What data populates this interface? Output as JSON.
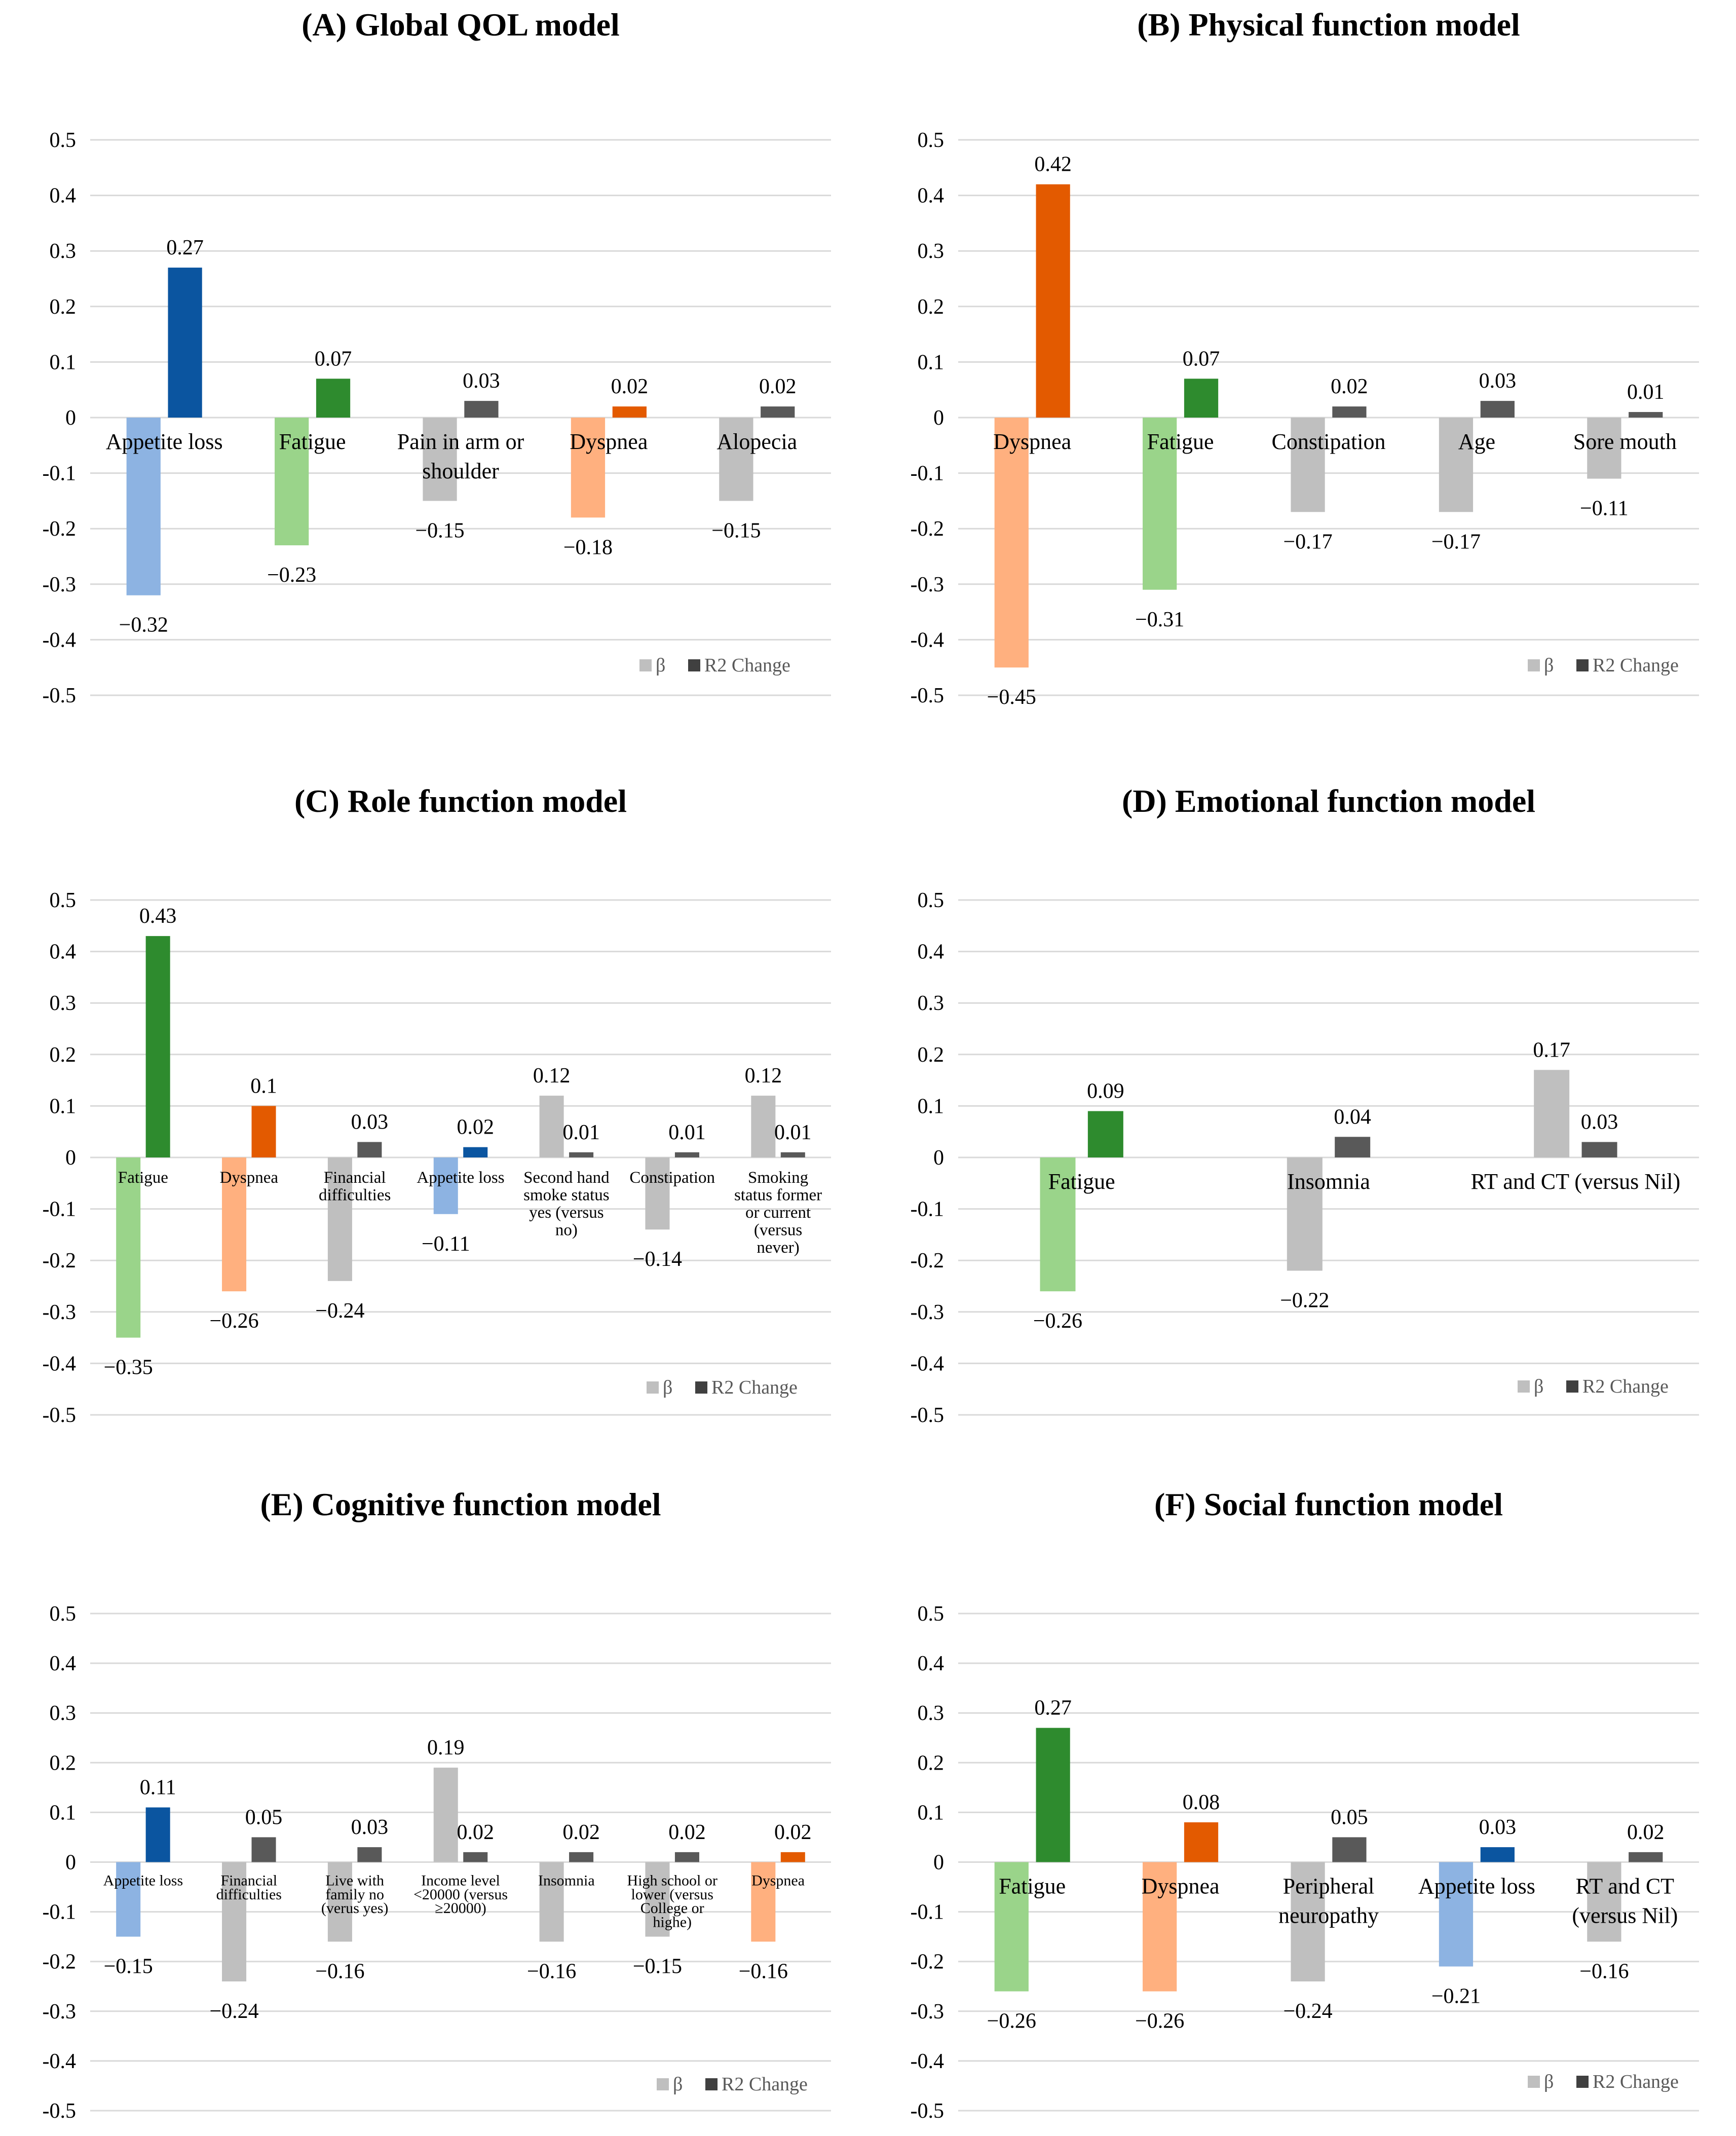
{
  "chart_data": [
    {
      "type": "bar",
      "title": "(A) Global QOL model",
      "categories": [
        "Appetite loss",
        "Fatigue",
        "Pain in arm or shoulder",
        "Dyspnea",
        "Alopecia"
      ],
      "series": [
        {
          "name": "β",
          "values": [
            -0.32,
            -0.23,
            -0.15,
            -0.18,
            -0.15
          ],
          "labels": [
            "−0.32",
            "−0.23",
            "−0.15",
            "−0.18",
            "−0.15"
          ]
        },
        {
          "name": "R2 Change",
          "values": [
            0.27,
            0.07,
            0.03,
            0.02,
            0.02
          ],
          "labels": [
            "0.27",
            "0.07",
            "0.03",
            "0.02",
            "0.02"
          ]
        }
      ],
      "beta_colors": [
        "#8DB3E2",
        "#9AD48A",
        "#BFBFBF",
        "#FFB07F",
        "#BFBFBF"
      ],
      "r2_colors": [
        "#0B55A0",
        "#2E8B2E",
        "#595959",
        "#E35A00",
        "#595959"
      ],
      "ylim": [
        -0.5,
        0.5
      ],
      "yticks": [
        "0.5",
        "0.4",
        "0.3",
        "0.2",
        "0.1",
        "0",
        "-0.1",
        "-0.2",
        "-0.3",
        "-0.4",
        "-0.5"
      ],
      "legend": "bottom-right",
      "xlabel": "",
      "ylabel": ""
    },
    {
      "type": "bar",
      "title": "(B) Physical function model",
      "categories": [
        "Dyspnea",
        "Fatigue",
        "Constipation",
        "Age",
        "Sore mouth"
      ],
      "series": [
        {
          "name": "β",
          "values": [
            -0.45,
            -0.31,
            -0.17,
            -0.17,
            -0.11
          ],
          "labels": [
            "−0.45",
            "−0.31",
            "−0.17",
            "−0.17",
            "−0.11"
          ]
        },
        {
          "name": "R2 Change",
          "values": [
            0.42,
            0.07,
            0.02,
            0.03,
            0.01
          ],
          "labels": [
            "0.42",
            "0.07",
            "0.02",
            "0.03",
            "0.01"
          ]
        }
      ],
      "beta_colors": [
        "#FFB07F",
        "#9AD48A",
        "#BFBFBF",
        "#BFBFBF",
        "#BFBFBF"
      ],
      "r2_colors": [
        "#E35A00",
        "#2E8B2E",
        "#595959",
        "#595959",
        "#595959"
      ],
      "ylim": [
        -0.5,
        0.5
      ],
      "yticks": [
        "0.5",
        "0.4",
        "0.3",
        "0.2",
        "0.1",
        "0",
        "-0.1",
        "-0.2",
        "-0.3",
        "-0.4",
        "-0.5"
      ],
      "legend": "bottom-right",
      "xlabel": "",
      "ylabel": ""
    },
    {
      "type": "bar",
      "title": "(C) Role function model",
      "categories": [
        "Fatigue",
        "Dyspnea",
        "Financial difficulties",
        "Appetite loss",
        "Second hand smoke status yes (versus no)",
        "Constipation",
        "Smoking status former or current (versus never)"
      ],
      "series": [
        {
          "name": "β",
          "values": [
            -0.35,
            -0.26,
            -0.24,
            -0.11,
            0.12,
            -0.14,
            0.12
          ],
          "labels": [
            "−0.35",
            "−0.26",
            "−0.24",
            "−0.11",
            "0.12",
            "−0.14",
            "0.12"
          ]
        },
        {
          "name": "R2 Change",
          "values": [
            0.43,
            0.1,
            0.03,
            0.02,
            0.01,
            0.01,
            0.01
          ],
          "labels": [
            "0.43",
            "0.1",
            "0.03",
            "0.02",
            "0.01",
            "0.01",
            "0.01"
          ]
        }
      ],
      "beta_colors": [
        "#9AD48A",
        "#FFB07F",
        "#BFBFBF",
        "#8DB3E2",
        "#BFBFBF",
        "#BFBFBF",
        "#BFBFBF"
      ],
      "r2_colors": [
        "#2E8B2E",
        "#E35A00",
        "#595959",
        "#0B55A0",
        "#595959",
        "#595959",
        "#595959"
      ],
      "ylim": [
        -0.5,
        0.5
      ],
      "yticks": [
        "0.5",
        "0.4",
        "0.3",
        "0.2",
        "0.1",
        "0",
        "-0.1",
        "-0.2",
        "-0.3",
        "-0.4",
        "-0.5"
      ],
      "legend": "bottom-right",
      "xlabel": "",
      "ylabel": ""
    },
    {
      "type": "bar",
      "title": "(D) Emotional function model",
      "categories": [
        "Fatigue",
        "Insomnia",
        "RT and CT (versus Nil)"
      ],
      "series": [
        {
          "name": "β",
          "values": [
            -0.26,
            -0.22,
            0.17
          ],
          "labels": [
            "−0.26",
            "−0.22",
            "0.17"
          ]
        },
        {
          "name": "R2 Change",
          "values": [
            0.09,
            0.04,
            0.03
          ],
          "labels": [
            "0.09",
            "0.04",
            "0.03"
          ]
        }
      ],
      "beta_colors": [
        "#9AD48A",
        "#BFBFBF",
        "#BFBFBF"
      ],
      "r2_colors": [
        "#2E8B2E",
        "#595959",
        "#595959"
      ],
      "ylim": [
        -0.5,
        0.5
      ],
      "yticks": [
        "0.5",
        "0.4",
        "0.3",
        "0.2",
        "0.1",
        "0",
        "-0.1",
        "-0.2",
        "-0.3",
        "-0.4",
        "-0.5"
      ],
      "legend": "bottom-right",
      "xlabel": "",
      "ylabel": ""
    },
    {
      "type": "bar",
      "title": "(E) Cognitive function model",
      "categories": [
        "Appetite loss",
        "Financial difficulties",
        "Live with family no (verus yes)",
        "Income level <20000 (versus ≥20000)",
        "Insomnia",
        "High school or lower (versus College or highe)",
        "Dyspnea"
      ],
      "series": [
        {
          "name": "β",
          "values": [
            -0.15,
            -0.24,
            -0.16,
            0.19,
            -0.16,
            -0.15,
            -0.16
          ],
          "labels": [
            "−0.15",
            "−0.24",
            "−0.16",
            "0.19",
            "−0.16",
            "−0.15",
            "−0.16"
          ]
        },
        {
          "name": "R2 Change",
          "values": [
            0.11,
            0.05,
            0.03,
            0.02,
            0.02,
            0.02,
            0.02
          ],
          "labels": [
            "0.11",
            "0.05",
            "0.03",
            "0.02",
            "0.02",
            "0.02",
            "0.02"
          ]
        }
      ],
      "beta_colors": [
        "#8DB3E2",
        "#BFBFBF",
        "#BFBFBF",
        "#BFBFBF",
        "#BFBFBF",
        "#BFBFBF",
        "#FFB07F"
      ],
      "r2_colors": [
        "#0B55A0",
        "#595959",
        "#595959",
        "#595959",
        "#595959",
        "#595959",
        "#E35A00"
      ],
      "ylim": [
        -0.5,
        0.5
      ],
      "yticks": [
        "0.5",
        "0.4",
        "0.3",
        "0.2",
        "0.1",
        "0",
        "-0.1",
        "-0.2",
        "-0.3",
        "-0.4",
        "-0.5"
      ],
      "legend": "bottom-right",
      "xlabel": "",
      "ylabel": ""
    },
    {
      "type": "bar",
      "title": "(F) Social function model",
      "categories": [
        "Fatigue",
        "Dyspnea",
        "Peripheral neuropathy",
        "Appetite loss",
        "RT and CT (versus Nil)"
      ],
      "series": [
        {
          "name": "β",
          "values": [
            -0.26,
            -0.26,
            -0.24,
            -0.21,
            -0.16
          ],
          "labels": [
            "−0.26",
            "−0.26",
            "−0.24",
            "−0.21",
            "−0.16"
          ]
        },
        {
          "name": "R2 Change",
          "values": [
            0.27,
            0.08,
            0.05,
            0.03,
            0.02
          ],
          "labels": [
            "0.27",
            "0.08",
            "0.05",
            "0.03",
            "0.02"
          ]
        }
      ],
      "beta_colors": [
        "#9AD48A",
        "#FFB07F",
        "#BFBFBF",
        "#8DB3E2",
        "#BFBFBF"
      ],
      "r2_colors": [
        "#2E8B2E",
        "#E35A00",
        "#595959",
        "#0B55A0",
        "#595959"
      ],
      "ylim": [
        -0.5,
        0.5
      ],
      "yticks": [
        "0.5",
        "0.4",
        "0.3",
        "0.2",
        "0.1",
        "0",
        "-0.1",
        "-0.2",
        "-0.3",
        "-0.4",
        "-0.5"
      ],
      "legend": "bottom-right",
      "xlabel": "",
      "ylabel": ""
    }
  ]
}
